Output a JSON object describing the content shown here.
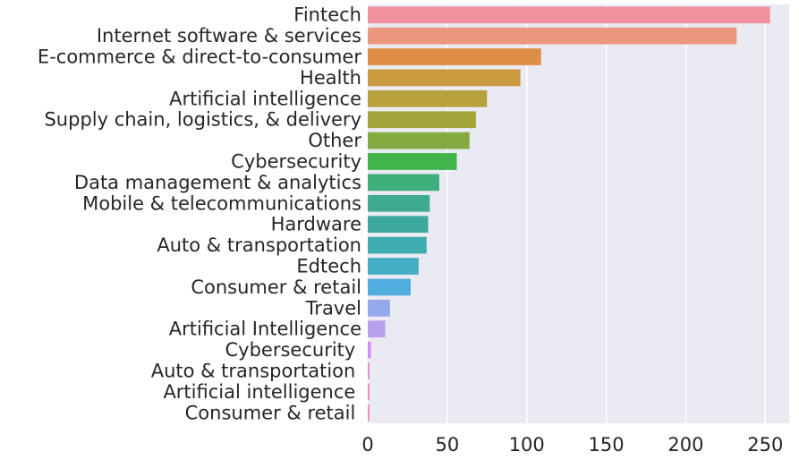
{
  "chart_data": {
    "type": "bar",
    "orientation": "horizontal",
    "title": "",
    "xlabel": "",
    "ylabel": "",
    "grid": true,
    "xlim": [
      0,
      265
    ],
    "xticks": [
      0,
      50,
      100,
      150,
      200,
      250
    ],
    "xtick_labels": [
      "0",
      "50",
      "100",
      "150",
      "200",
      "250"
    ],
    "categories": [
      "Fintech",
      "Internet software & services",
      "E-commerce & direct-to-consumer",
      "Health",
      "Artificial intelligence",
      "Supply chain, logistics, & delivery",
      "Other",
      "Cybersecurity",
      "Data management & analytics",
      "Mobile & telecommunications",
      "Hardware",
      "Auto & transportation",
      "Edtech",
      "Consumer & retail",
      "Travel",
      "Artificial Intelligence",
      "Cybersecurity ",
      "Auto & transportation ",
      "Artificial intelligence ",
      "Consumer & retail "
    ],
    "values": [
      253,
      232,
      109,
      96,
      75,
      68,
      64,
      56,
      45,
      39,
      38,
      37,
      32,
      27,
      14,
      11,
      2,
      1,
      1,
      1
    ],
    "colors": [
      "#f0919e",
      "#ec9680",
      "#dd8e44",
      "#cc9a3e",
      "#b8a03d",
      "#a4a43b",
      "#86aa42",
      "#3fb54c",
      "#3eae7b",
      "#3fab8f",
      "#3eaa9e",
      "#41acaf",
      "#46aec4",
      "#4faede",
      "#93a9ec",
      "#b7a0ee",
      "#cf8ef0",
      "#e57fdc",
      "#f07ec5",
      "#f187b0"
    ],
    "background": "#eaeaf2",
    "grid_color": "#ffffff"
  }
}
